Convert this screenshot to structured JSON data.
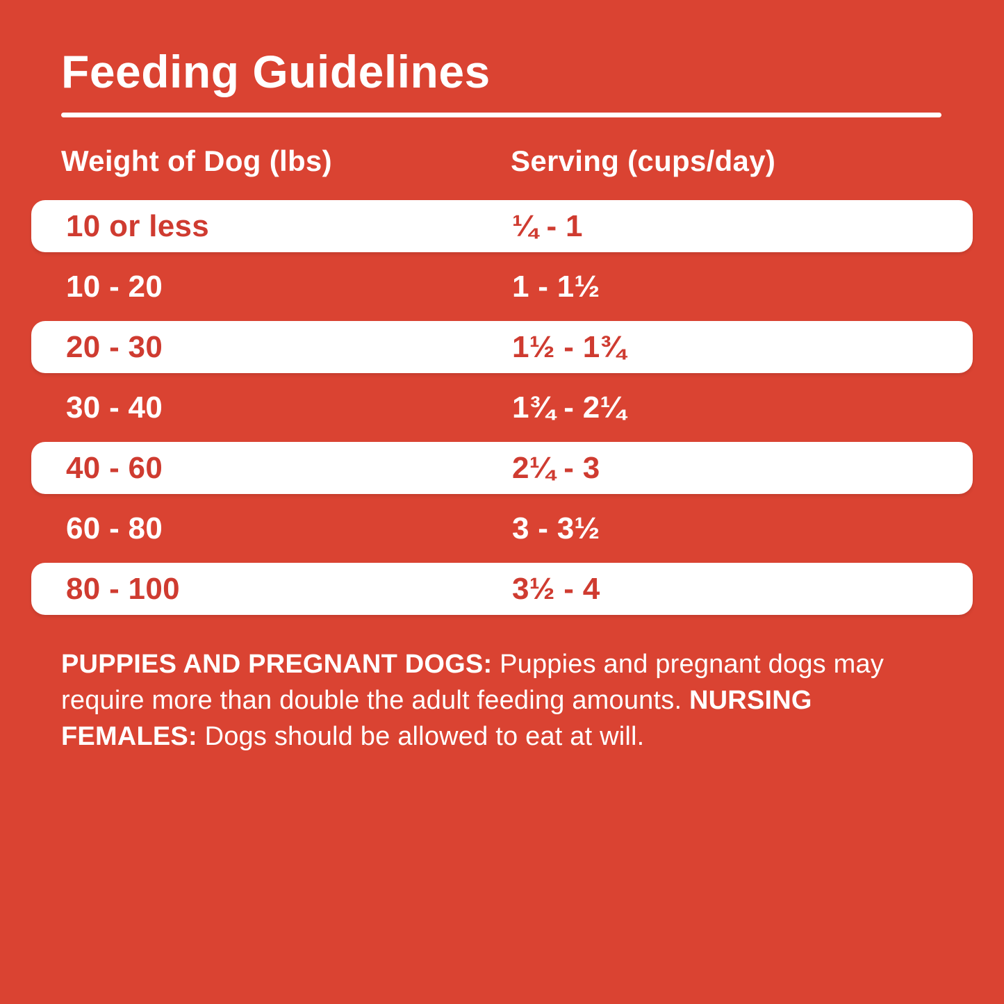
{
  "colors": {
    "bg": "#DA4332",
    "row-bg": "#FFFFFF",
    "red-text": "#CF3B30",
    "white-text": "#FFFFFF"
  },
  "title": "Feeding Guidelines",
  "table": {
    "headers": [
      "Weight of Dog (lbs)",
      "Serving (cups/day)"
    ],
    "rows": [
      {
        "weight": "10 or less",
        "serving": "¼ - 1",
        "highlighted": true
      },
      {
        "weight": "10 - 20",
        "serving": "1 - 1½",
        "highlighted": false
      },
      {
        "weight": "20 - 30",
        "serving": "1½ - 1¾",
        "highlighted": true
      },
      {
        "weight": "30 - 40",
        "serving": "1¾ - 2¼",
        "highlighted": false
      },
      {
        "weight": "40 - 60",
        "serving": "2¼ - 3",
        "highlighted": true
      },
      {
        "weight": "60 - 80",
        "serving": "3 - 3½",
        "highlighted": false
      },
      {
        "weight": "80 - 100",
        "serving": "3½ - 4",
        "highlighted": true
      }
    ]
  },
  "footnote": {
    "segments": [
      {
        "text": "PUPPIES AND PREGNANT DOGS:",
        "bold": true
      },
      {
        "text": " Puppies and pregnant dogs may require more than double the adult feeding amounts. ",
        "bold": false
      },
      {
        "text": "NURSING FEMALES:",
        "bold": true
      },
      {
        "text": " Dogs should be allowed to eat at will.",
        "bold": false
      }
    ]
  }
}
